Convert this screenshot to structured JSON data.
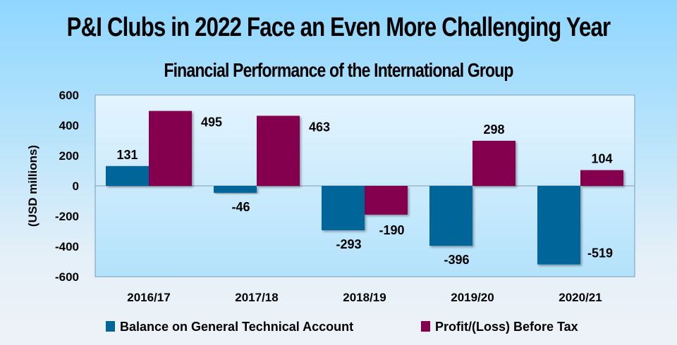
{
  "chart_data": {
    "type": "bar",
    "title": "P&I Clubs in 2022 Face an Even More Challenging Year",
    "subtitle": "Financial Performance of the International Group",
    "xlabel": "",
    "ylabel": "(USD millions)",
    "ylim": [
      -600,
      600
    ],
    "yticks": [
      600,
      400,
      200,
      0,
      -200,
      -400,
      -600
    ],
    "categories": [
      "2016/17",
      "2017/18",
      "2018/19",
      "2019/20",
      "2020/21"
    ],
    "series": [
      {
        "name": "Balance on General Technical Account",
        "color": "#006699",
        "values": [
          131,
          -46,
          -293,
          -396,
          -519
        ]
      },
      {
        "name": "Profit/(Loss) Before Tax",
        "color": "#84004f",
        "values": [
          495,
          463,
          -190,
          298,
          104
        ]
      }
    ],
    "grid": false,
    "legend": "bottom"
  }
}
